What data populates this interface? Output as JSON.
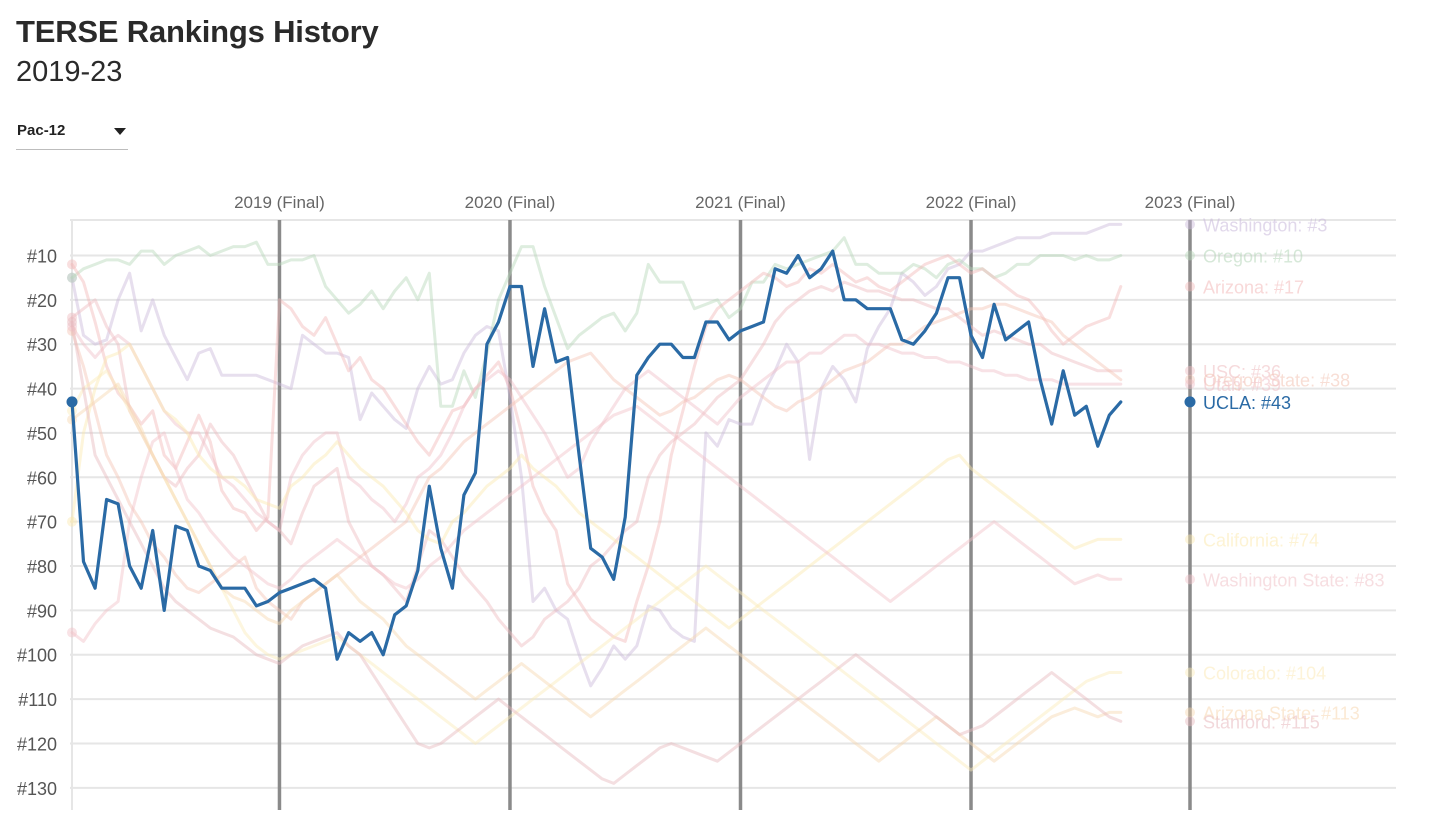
{
  "header": {
    "title": "TERSE Rankings History",
    "subtitle": "2019-23"
  },
  "conference_select": {
    "selected": "Pac-12"
  },
  "chart_data": {
    "type": "line",
    "y_reversed": true,
    "ylim": [
      135,
      2
    ],
    "y_ticks": [
      "#10",
      "#20",
      "#30",
      "#40",
      "#50",
      "#60",
      "#70",
      "#80",
      "#90",
      "#100",
      "#110",
      "#120",
      "#130"
    ],
    "y_tick_values": [
      10,
      20,
      30,
      40,
      50,
      60,
      70,
      80,
      90,
      100,
      110,
      120,
      130
    ],
    "xlim": [
      0,
      97
    ],
    "season_markers": [
      {
        "label": "2019 (Final)",
        "x": 18
      },
      {
        "label": "2020 (Final)",
        "x": 38
      },
      {
        "label": "2021 (Final)",
        "x": 58
      },
      {
        "label": "2022 (Final)",
        "x": 78
      },
      {
        "label": "2023 (Final)",
        "x": 97
      }
    ],
    "grid": true,
    "highlight": "UCLA",
    "highlight_color": "#2a6aa5",
    "series": [
      {
        "name": "UCLA",
        "final_label": "UCLA: #43",
        "color": "#2a6aa5",
        "highlight": true,
        "values": [
          43,
          79,
          85,
          65,
          66,
          80,
          85,
          72,
          90,
          71,
          72,
          80,
          81,
          85,
          85,
          85,
          89,
          88,
          86,
          85,
          84,
          83,
          85,
          101,
          95,
          97,
          95,
          100,
          91,
          89,
          81,
          62,
          76,
          85,
          64,
          59,
          30,
          25,
          17,
          17,
          35,
          22,
          34,
          33,
          55,
          76,
          78,
          83,
          69,
          37,
          33,
          30,
          30,
          33,
          33,
          25,
          25,
          29,
          27,
          26,
          25,
          13,
          14,
          10,
          15,
          13,
          9,
          20,
          20,
          22,
          22,
          22,
          29,
          30,
          27,
          23,
          15,
          15,
          28,
          33,
          21,
          29,
          27,
          25,
          38,
          48,
          36,
          46,
          44,
          53,
          46,
          43
        ]
      },
      {
        "name": "Washington",
        "final_label": "Washington: #3",
        "color": "#c9b8da",
        "values": [
          15,
          28,
          30,
          29,
          20,
          14,
          27,
          20,
          28,
          33,
          38,
          32,
          31,
          37,
          37,
          37,
          37,
          38,
          39,
          40,
          28,
          30,
          32,
          32,
          33,
          47,
          41,
          44,
          47,
          49,
          40,
          35,
          39,
          38,
          32,
          28,
          26,
          27,
          42,
          60,
          88,
          85,
          90,
          92,
          100,
          107,
          103,
          98,
          101,
          98,
          89,
          90,
          94,
          96,
          97,
          50,
          53,
          47,
          48,
          48,
          41,
          36,
          30,
          34,
          56,
          40,
          35,
          38,
          43,
          31,
          26,
          22,
          14,
          16,
          19,
          17,
          13,
          12,
          9,
          9,
          8,
          7,
          6,
          6,
          6,
          5,
          5,
          5,
          5,
          4,
          3,
          3
        ]
      },
      {
        "name": "Oregon",
        "final_label": "Oregon: #10",
        "color": "#b5d6b8",
        "values": [
          15,
          13,
          12,
          11,
          11,
          12,
          9,
          9,
          12,
          10,
          9,
          8,
          10,
          9,
          8,
          8,
          7,
          12,
          12,
          11,
          11,
          10,
          17,
          20,
          23,
          21,
          18,
          22,
          18,
          15,
          20,
          14,
          44,
          44,
          36,
          42,
          32,
          20,
          14,
          8,
          8,
          17,
          24,
          31,
          28,
          26,
          24,
          23,
          27,
          23,
          12,
          16,
          16,
          16,
          22,
          21,
          20,
          24,
          22,
          16,
          16,
          12,
          13,
          12,
          11,
          10,
          9,
          6,
          12,
          12,
          14,
          14,
          14,
          12,
          13,
          15,
          12,
          11,
          13,
          13,
          15,
          14,
          12,
          12,
          10,
          10,
          10,
          11,
          10,
          11,
          11,
          10
        ]
      },
      {
        "name": "Arizona",
        "final_label": "Arizona: #17",
        "color": "#f2b8b8",
        "values": [
          12,
          16,
          25,
          35,
          41,
          44,
          48,
          45,
          55,
          58,
          52,
          46,
          52,
          63,
          67,
          68,
          72,
          69,
          20,
          22,
          26,
          28,
          24,
          30,
          36,
          33,
          38,
          40,
          44,
          48,
          52,
          55,
          50,
          45,
          44,
          40,
          37,
          34,
          40,
          50,
          62,
          68,
          72,
          84,
          88,
          92,
          94,
          96,
          97,
          88,
          80,
          70,
          55,
          45,
          35,
          26,
          22,
          20,
          18,
          16,
          14,
          15,
          17,
          16,
          13,
          14,
          12,
          14,
          16,
          15,
          17,
          18,
          16,
          14,
          12,
          11,
          10,
          12,
          14,
          13,
          15,
          17,
          19,
          20,
          23,
          27,
          30,
          28,
          26,
          25,
          24,
          17
        ]
      },
      {
        "name": "USC",
        "final_label": "USC: #36",
        "color": "#eebbbf",
        "values": [
          24,
          22,
          20,
          26,
          30,
          45,
          50,
          55,
          60,
          62,
          58,
          55,
          48,
          52,
          55,
          60,
          65,
          70,
          72,
          75,
          68,
          62,
          60,
          58,
          70,
          75,
          80,
          82,
          85,
          88,
          80,
          72,
          74,
          78,
          82,
          85,
          88,
          92,
          95,
          98,
          96,
          92,
          90,
          88,
          85,
          80,
          78,
          75,
          72,
          70,
          60,
          55,
          52,
          50,
          48,
          45,
          42,
          40,
          38,
          34,
          30,
          25,
          22,
          20,
          18,
          17,
          18,
          16,
          17,
          18,
          18,
          19,
          20,
          20,
          21,
          22,
          22,
          24,
          26,
          28,
          27,
          28,
          29,
          30,
          30,
          32,
          33,
          34,
          35,
          36,
          36,
          36
        ]
      },
      {
        "name": "Oregon State",
        "final_label": "Oregon State: #38",
        "color": "#f3c3b3",
        "values": [
          27,
          35,
          45,
          55,
          60,
          66,
          70,
          75,
          78,
          82,
          85,
          86,
          84,
          82,
          80,
          78,
          85,
          88,
          90,
          92,
          88,
          86,
          84,
          82,
          80,
          78,
          76,
          74,
          72,
          70,
          65,
          60,
          58,
          55,
          52,
          50,
          48,
          46,
          44,
          42,
          40,
          38,
          36,
          34,
          33,
          32,
          35,
          38,
          40,
          42,
          44,
          46,
          45,
          43,
          42,
          40,
          38,
          37,
          38,
          40,
          42,
          44,
          45,
          43,
          42,
          40,
          38,
          36,
          35,
          34,
          32,
          30,
          30,
          28,
          26,
          25,
          24,
          23,
          22,
          22,
          21,
          21,
          22,
          23,
          24,
          25,
          28,
          30,
          32,
          34,
          36,
          38
        ]
      },
      {
        "name": "Utah",
        "final_label": "Utah: #39",
        "color": "#f0bfc7",
        "values": [
          26,
          30,
          33,
          30,
          28,
          30,
          35,
          40,
          45,
          48,
          50,
          50,
          55,
          60,
          62,
          65,
          68,
          70,
          72,
          60,
          55,
          52,
          50,
          50,
          60,
          62,
          65,
          67,
          70,
          66,
          60,
          58,
          55,
          50,
          44,
          40,
          38,
          36,
          38,
          42,
          46,
          50,
          55,
          60,
          58,
          52,
          48,
          44,
          40,
          38,
          36,
          38,
          40,
          42,
          44,
          46,
          48,
          45,
          42,
          40,
          38,
          36,
          34,
          34,
          32,
          32,
          30,
          28,
          28,
          30,
          30,
          31,
          32,
          32,
          33,
          33,
          34,
          34,
          35,
          36,
          36,
          37,
          37,
          38,
          38,
          38,
          39,
          39,
          39,
          39,
          39,
          39
        ]
      },
      {
        "name": "California",
        "final_label": "California: #74",
        "color": "#fbe9b0",
        "values": [
          70,
          50,
          40,
          33,
          32,
          30,
          35,
          40,
          45,
          47,
          50,
          55,
          58,
          60,
          60,
          62,
          65,
          66,
          67,
          62,
          60,
          57,
          55,
          52,
          55,
          58,
          60,
          62,
          65,
          68,
          72,
          74,
          75,
          70,
          68,
          65,
          62,
          60,
          58,
          55,
          58,
          60,
          62,
          65,
          68,
          70,
          72,
          74,
          76,
          78,
          80,
          82,
          84,
          86,
          88,
          90,
          92,
          94,
          92,
          90,
          88,
          86,
          84,
          82,
          80,
          78,
          76,
          74,
          72,
          70,
          68,
          66,
          64,
          62,
          60,
          58,
          56,
          55,
          58,
          60,
          62,
          64,
          66,
          68,
          70,
          72,
          74,
          76,
          75,
          74,
          74,
          74
        ]
      },
      {
        "name": "Washington State",
        "final_label": "Washington State: #83",
        "color": "#f1c2c8",
        "values": [
          95,
          97,
          93,
          90,
          88,
          70,
          60,
          52,
          50,
          58,
          65,
          68,
          72,
          75,
          78,
          80,
          82,
          84,
          85,
          83,
          80,
          78,
          76,
          74,
          76,
          78,
          80,
          82,
          84,
          85,
          83,
          80,
          78,
          75,
          72,
          70,
          68,
          66,
          64,
          62,
          60,
          58,
          56,
          54,
          52,
          50,
          48,
          46,
          45,
          44,
          46,
          48,
          50,
          52,
          54,
          56,
          58,
          60,
          62,
          64,
          66,
          68,
          70,
          72,
          74,
          76,
          78,
          80,
          82,
          84,
          86,
          88,
          86,
          84,
          82,
          80,
          78,
          76,
          74,
          72,
          70,
          72,
          74,
          76,
          78,
          80,
          82,
          84,
          83,
          82,
          83,
          83
        ]
      },
      {
        "name": "Colorado",
        "final_label": "Colorado: #104",
        "color": "#fbeab8",
        "values": [
          45,
          40,
          38,
          36,
          40,
          45,
          50,
          55,
          60,
          65,
          70,
          75,
          80,
          85,
          90,
          95,
          98,
          100,
          101,
          100,
          99,
          98,
          97,
          96,
          98,
          100,
          102,
          104,
          106,
          108,
          110,
          112,
          114,
          116,
          118,
          120,
          118,
          116,
          114,
          112,
          110,
          108,
          106,
          104,
          102,
          100,
          98,
          96,
          94,
          92,
          90,
          88,
          86,
          84,
          82,
          80,
          82,
          84,
          86,
          88,
          90,
          92,
          94,
          96,
          98,
          100,
          102,
          104,
          106,
          108,
          110,
          112,
          114,
          116,
          118,
          120,
          122,
          124,
          126,
          124,
          122,
          120,
          118,
          116,
          114,
          112,
          110,
          108,
          106,
          105,
          104,
          104
        ]
      },
      {
        "name": "Arizona State",
        "final_label": "Arizona State: #113",
        "color": "#f7d7b0",
        "values": [
          47,
          45,
          43,
          41,
          39,
          44,
          49,
          55,
          60,
          65,
          70,
          75,
          80,
          85,
          87,
          88,
          90,
          92,
          93,
          90,
          88,
          86,
          84,
          82,
          85,
          88,
          90,
          92,
          95,
          98,
          100,
          102,
          104,
          106,
          108,
          110,
          108,
          106,
          104,
          102,
          104,
          106,
          108,
          110,
          112,
          114,
          112,
          110,
          108,
          106,
          104,
          102,
          100,
          98,
          96,
          94,
          96,
          98,
          100,
          102,
          104,
          106,
          108,
          110,
          112,
          114,
          116,
          118,
          120,
          122,
          124,
          122,
          120,
          118,
          116,
          114,
          116,
          118,
          120,
          122,
          124,
          122,
          120,
          118,
          116,
          114,
          113,
          112,
          113,
          114,
          113,
          113
        ]
      },
      {
        "name": "Stanford",
        "final_label": "Stanford: #115",
        "color": "#e7b8bd",
        "values": [
          25,
          40,
          55,
          60,
          65,
          70,
          75,
          80,
          85,
          88,
          90,
          92,
          94,
          95,
          96,
          98,
          100,
          101,
          102,
          100,
          98,
          97,
          96,
          95,
          98,
          100,
          104,
          108,
          112,
          116,
          120,
          121,
          120,
          118,
          116,
          114,
          112,
          110,
          112,
          114,
          116,
          118,
          120,
          122,
          124,
          126,
          128,
          129,
          127,
          125,
          123,
          121,
          120,
          121,
          122,
          123,
          124,
          122,
          120,
          118,
          116,
          114,
          112,
          110,
          108,
          106,
          104,
          102,
          100,
          102,
          104,
          106,
          108,
          110,
          112,
          114,
          116,
          118,
          117,
          116,
          114,
          112,
          110,
          108,
          106,
          104,
          106,
          108,
          110,
          112,
          114,
          115
        ]
      }
    ]
  }
}
